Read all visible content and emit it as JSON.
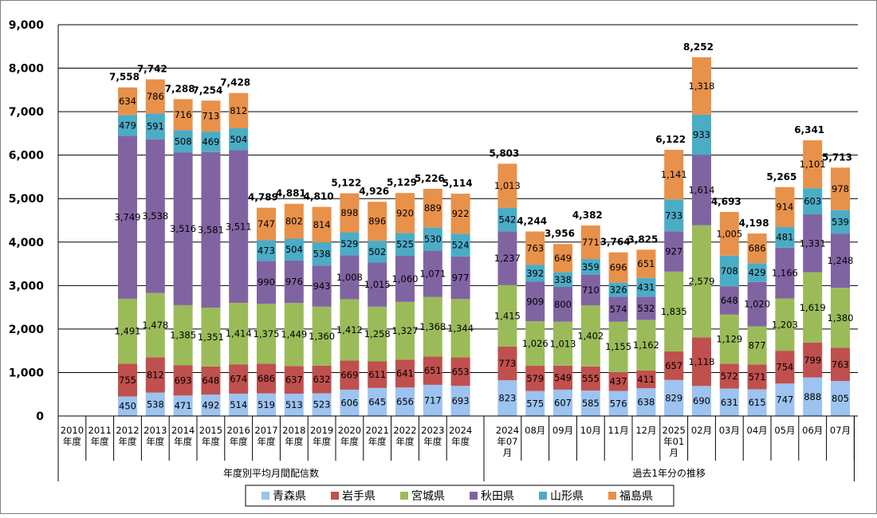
{
  "chart_data": {
    "type": "bar",
    "stacked": true,
    "ylim": [
      0,
      9000
    ],
    "ytick_step": 1000,
    "grid": true,
    "legend_position": "bottom",
    "groups": [
      {
        "label": "年度別平均月間配信数",
        "from": 0,
        "to": 14
      },
      {
        "label": "過去1年分の推移",
        "from": 15,
        "to": 27
      }
    ],
    "categories": [
      [
        "2010",
        "年度"
      ],
      [
        "2011",
        "年度"
      ],
      [
        "2012",
        "年度"
      ],
      [
        "2013",
        "年度"
      ],
      [
        "2014",
        "年度"
      ],
      [
        "2015",
        "年度"
      ],
      [
        "2016",
        "年度"
      ],
      [
        "2017",
        "年度"
      ],
      [
        "2018",
        "年度"
      ],
      [
        "2019",
        "年度"
      ],
      [
        "2020",
        "年度"
      ],
      [
        "2021",
        "年度"
      ],
      [
        "2022",
        "年度"
      ],
      [
        "2023",
        "年度"
      ],
      [
        "2024",
        "年度"
      ],
      [
        "2024",
        "年07",
        "月"
      ],
      [
        "08月"
      ],
      [
        "09月"
      ],
      [
        "10月"
      ],
      [
        "11月"
      ],
      [
        "12月"
      ],
      [
        "2025",
        "年01",
        "月"
      ],
      [
        "02月"
      ],
      [
        "03月"
      ],
      [
        "04月"
      ],
      [
        "05月"
      ],
      [
        "06月"
      ],
      [
        "07月"
      ]
    ],
    "series": [
      {
        "name": "青森県",
        "color": "#9DC3F0",
        "values": [
          null,
          null,
          450,
          538,
          471,
          492,
          514,
          519,
          513,
          523,
          606,
          645,
          656,
          717,
          693,
          823,
          575,
          607,
          585,
          576,
          638,
          829,
          690,
          631,
          615,
          747,
          888,
          805
        ]
      },
      {
        "name": "岩手県",
        "color": "#C0504D",
        "values": [
          null,
          null,
          755,
          812,
          693,
          648,
          674,
          686,
          637,
          632,
          669,
          611,
          641,
          651,
          653,
          773,
          579,
          549,
          555,
          437,
          411,
          657,
          1118,
          572,
          571,
          754,
          799,
          763
        ]
      },
      {
        "name": "宮城県",
        "color": "#9BBB59",
        "values": [
          null,
          null,
          1491,
          1478,
          1385,
          1351,
          1414,
          1375,
          1449,
          1360,
          1412,
          1258,
          1327,
          1368,
          1344,
          1415,
          1026,
          1013,
          1402,
          1155,
          1162,
          1835,
          2579,
          1129,
          877,
          1203,
          1619,
          1380
        ]
      },
      {
        "name": "秋田県",
        "color": "#8064A2",
        "values": [
          null,
          null,
          3749,
          3538,
          3516,
          3581,
          3511,
          990,
          976,
          943,
          1008,
          1015,
          1060,
          1071,
          977,
          1237,
          909,
          800,
          710,
          574,
          532,
          927,
          1614,
          648,
          1020,
          1166,
          1331,
          1248
        ]
      },
      {
        "name": "山形県",
        "color": "#4BACC6",
        "values": [
          null,
          null,
          479,
          591,
          508,
          469,
          504,
          473,
          504,
          538,
          529,
          502,
          525,
          530,
          524,
          542,
          392,
          338,
          359,
          326,
          431,
          733,
          933,
          708,
          429,
          481,
          603,
          539
        ]
      },
      {
        "name": "福島県",
        "color": "#E8914A",
        "values": [
          null,
          null,
          634,
          786,
          716,
          713,
          812,
          747,
          802,
          814,
          898,
          896,
          920,
          889,
          922,
          1013,
          763,
          649,
          771,
          696,
          651,
          1141,
          1318,
          1005,
          686,
          914,
          1101,
          978
        ]
      }
    ],
    "totals": [
      null,
      null,
      7558,
      7742,
      7288,
      7254,
      7428,
      4789,
      4881,
      4810,
      5122,
      4926,
      5129,
      5226,
      5114,
      5803,
      4244,
      3956,
      4382,
      3764,
      3825,
      6122,
      8252,
      4693,
      4198,
      5265,
      6341,
      5713
    ]
  }
}
